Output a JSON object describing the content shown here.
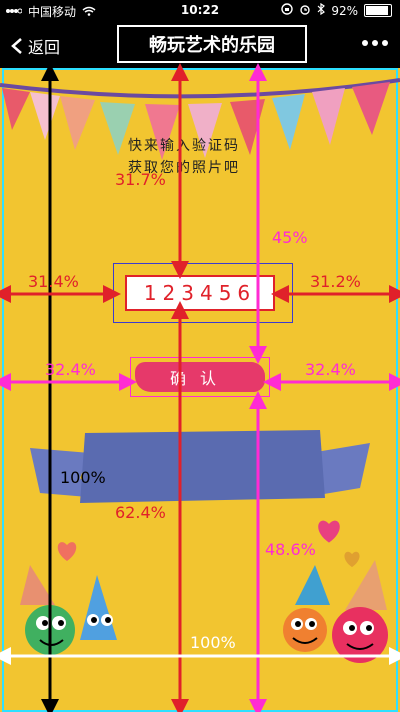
{
  "status_bar": {
    "carrier": "中国移动",
    "time": "10:22",
    "battery": "92%"
  },
  "nav": {
    "back_label": "返回",
    "title": "畅玩艺术的乐园"
  },
  "prompt": {
    "line1": "快来输入验证码",
    "line2": "获取您的照片吧"
  },
  "code": "123456",
  "confirm_label": "确认",
  "annotations": {
    "top_left": "31.7%",
    "top_right": "45%",
    "code_left": "31.4%",
    "code_right": "31.2%",
    "confirm_left": "32.4%",
    "confirm_right": "32.4%",
    "full_height": "100%",
    "below_code": "62.4%",
    "below_confirm": "48.6%",
    "full_width": "100%"
  }
}
